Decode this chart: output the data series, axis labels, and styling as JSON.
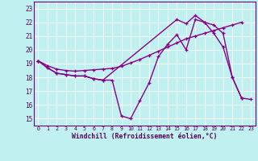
{
  "bg_color": "#c0f0f0",
  "line_color": "#880088",
  "xlabel": "Windchill (Refroidissement éolien,°C)",
  "xlim_min": -0.5,
  "xlim_max": 23.5,
  "ylim_min": 14.5,
  "ylim_max": 23.5,
  "yticks": [
    15,
    16,
    17,
    18,
    19,
    20,
    21,
    22,
    23
  ],
  "line1_x": [
    0,
    1,
    2,
    3,
    4,
    5,
    6,
    7,
    8,
    9,
    10,
    11,
    12,
    13,
    14,
    15,
    16,
    17,
    18,
    19,
    20,
    21,
    22
  ],
  "line1_y": [
    19.2,
    18.7,
    18.3,
    18.2,
    18.1,
    18.1,
    17.9,
    17.8,
    17.8,
    15.2,
    15.0,
    16.3,
    17.6,
    19.5,
    20.4,
    21.1,
    20.0,
    22.2,
    22.0,
    21.2,
    20.2,
    18.0,
    16.5
  ],
  "line2_x": [
    0,
    1,
    2,
    3,
    4,
    5,
    6,
    7,
    8,
    9,
    10,
    11,
    12,
    13,
    14,
    15,
    16,
    17,
    18,
    19,
    20,
    21,
    22
  ],
  "line2_y": [
    19.2,
    18.85,
    18.6,
    18.5,
    18.45,
    18.5,
    18.55,
    18.6,
    18.65,
    18.8,
    19.05,
    19.3,
    19.6,
    19.9,
    20.2,
    20.5,
    20.8,
    21.0,
    21.2,
    21.4,
    21.6,
    21.8,
    22.0
  ],
  "line3_x": [
    0,
    1,
    2,
    3,
    4,
    5,
    6,
    7,
    8,
    15,
    16,
    17,
    18,
    19,
    20,
    21,
    22,
    23
  ],
  "line3_y": [
    19.2,
    18.7,
    18.3,
    18.2,
    18.1,
    18.1,
    17.9,
    17.8,
    17.8,
    22.2,
    21.9,
    22.5,
    22.0,
    21.8,
    21.2,
    18.0,
    16.5,
    16.4
  ]
}
